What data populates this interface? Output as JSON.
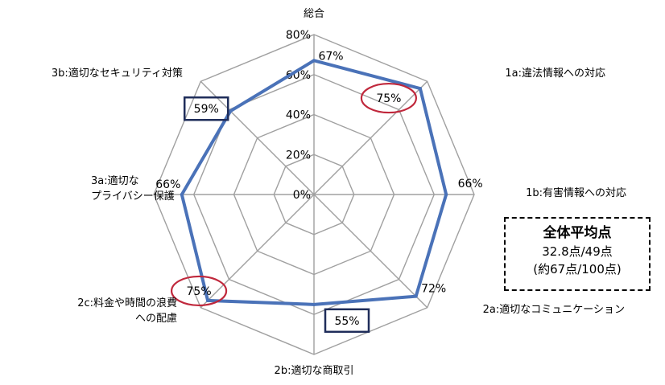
{
  "chart_data": {
    "type": "radar",
    "title": "",
    "axes": [
      "総合",
      "1a:違法情報への対応",
      "1b:有害情報への対応",
      "2a:適切なコミュニケーション",
      "2b:適切な商取引",
      "2c:料金や時間の浪費への配慮",
      "3a:適切なプライバシー保護",
      "3b:適切なセキュリティ対策"
    ],
    "axis_label_lines": [
      [
        "総合"
      ],
      [
        "1a:違法情報への対応"
      ],
      [
        "1b:有害情報への対応"
      ],
      [
        "2a:適切なコミュニケーション"
      ],
      [
        "2b:適切な商取引"
      ],
      [
        "2c:料金や時間の浪費",
        "への配慮"
      ],
      [
        "3a:適切な",
        "プライバシー保護"
      ],
      [
        "3b:適切なセキュリティ対策"
      ]
    ],
    "values": [
      67,
      75,
      66,
      72,
      55,
      75,
      66,
      59
    ],
    "value_labels": [
      "67%",
      "75%",
      "66%",
      "72%",
      "55%",
      "75%",
      "66%",
      "59%"
    ],
    "range": [
      0,
      80
    ],
    "ticks": [
      0,
      20,
      40,
      60,
      80
    ],
    "tick_labels": [
      "0%",
      "20%",
      "40%",
      "60%",
      "80%"
    ],
    "highlight_high": [
      1,
      5
    ],
    "highlight_low": [
      4,
      7
    ],
    "colors": {
      "series": "#4a72b8",
      "grid": "#a0a0a0",
      "high_marker": "#c0283c",
      "low_marker": "#1f2d5a"
    }
  },
  "summary": {
    "title": "全体平均点",
    "line1": "32.8点/49点",
    "line2": "(約67点/100点)"
  }
}
